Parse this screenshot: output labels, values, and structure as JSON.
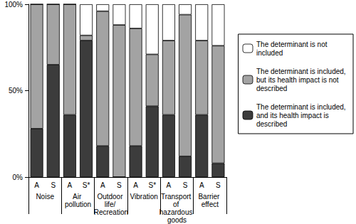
{
  "chart_data": {
    "type": "bar",
    "stacked": true,
    "categories": [
      "A",
      "S",
      "A",
      "S*",
      "A",
      "S",
      "A",
      "S*",
      "A",
      "S",
      "A",
      "S"
    ],
    "groups": [
      "Noise",
      "Air pollution",
      "Outdoor life/ Recreation",
      "Vibration",
      "Transport of hazardous goods",
      "Barrier effect"
    ],
    "series": [
      {
        "name": "The determinant is included, and its health impact is described",
        "color": "#3c3c3c",
        "values": [
          28,
          65,
          36,
          79,
          18,
          0,
          18,
          41,
          36,
          12,
          36,
          8
        ]
      },
      {
        "name": "The determinant is included, but its health impact is not described",
        "color": "#a3a3a3",
        "values": [
          72,
          35,
          64,
          3,
          78,
          88,
          68,
          30,
          43,
          82,
          43,
          68
        ]
      },
      {
        "name": "The determinant is not included",
        "color": "#ffffff",
        "values": [
          0,
          0,
          0,
          18,
          4,
          12,
          14,
          29,
          21,
          6,
          21,
          24
        ]
      }
    ],
    "ylim": [
      0,
      100
    ],
    "yticks": [
      {
        "value": 0,
        "label": "0%"
      },
      {
        "value": 50,
        "label": "50%"
      },
      {
        "value": 100,
        "label": "100%"
      }
    ],
    "grid": false,
    "legend": "right"
  }
}
